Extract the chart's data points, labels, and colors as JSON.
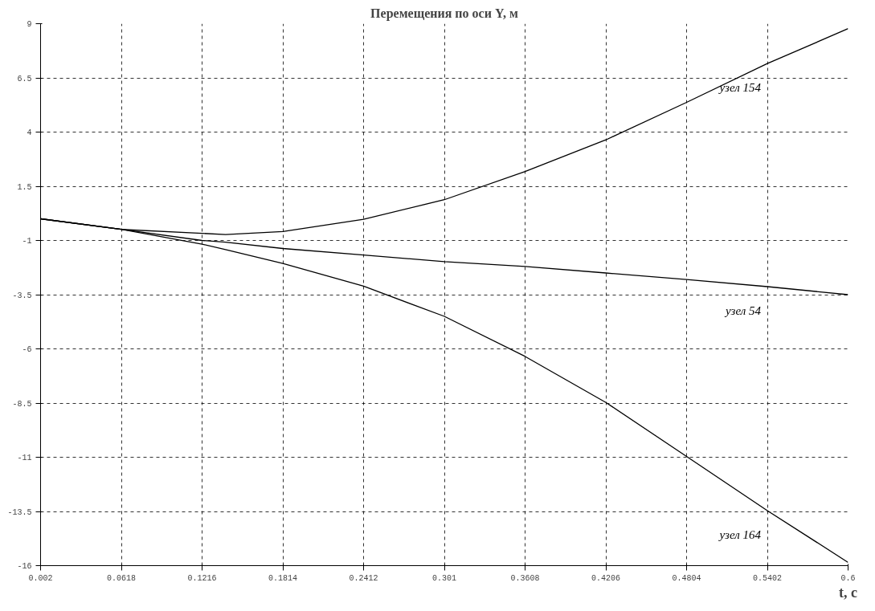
{
  "chart_data": {
    "type": "line",
    "title": "Перемещения по оси Y, м",
    "xlabel": "t, с",
    "x": [
      0.002,
      0.0618,
      0.1216,
      0.139,
      0.1814,
      0.2412,
      0.301,
      0.3608,
      0.4206,
      0.4804,
      0.5402,
      0.6
    ],
    "series": [
      {
        "name": "узел 154",
        "color": "#000000",
        "values": [
          0.0,
          -0.49,
          -0.67,
          -0.73,
          -0.59,
          -0.02,
          0.88,
          2.18,
          3.64,
          5.37,
          7.16,
          8.77
        ]
      },
      {
        "name": "узел 54",
        "color": "#000000",
        "values": [
          0.0,
          -0.49,
          -1.0,
          -1.08,
          -1.37,
          -1.67,
          -1.98,
          -2.2,
          -2.5,
          -2.8,
          -3.13,
          -3.5
        ]
      },
      {
        "name": "узел 164",
        "color": "#000000",
        "values": [
          0.0,
          -0.49,
          -1.17,
          -1.42,
          -2.06,
          -3.11,
          -4.5,
          -6.35,
          -8.47,
          -10.96,
          -13.46,
          -15.85
        ]
      }
    ],
    "xlim": [
      0.002,
      0.6
    ],
    "ylim": [
      -16,
      9
    ],
    "xticks": [
      0.002,
      0.0618,
      0.1216,
      0.1814,
      0.2412,
      0.301,
      0.3608,
      0.4206,
      0.4804,
      0.5402,
      0.6
    ],
    "yticks": [
      -16,
      -13.5,
      -11,
      -8.5,
      -6,
      -3.5,
      -1,
      1.5,
      4,
      6.5,
      9
    ],
    "grid": true,
    "marker": "none",
    "line_style": "solid"
  }
}
